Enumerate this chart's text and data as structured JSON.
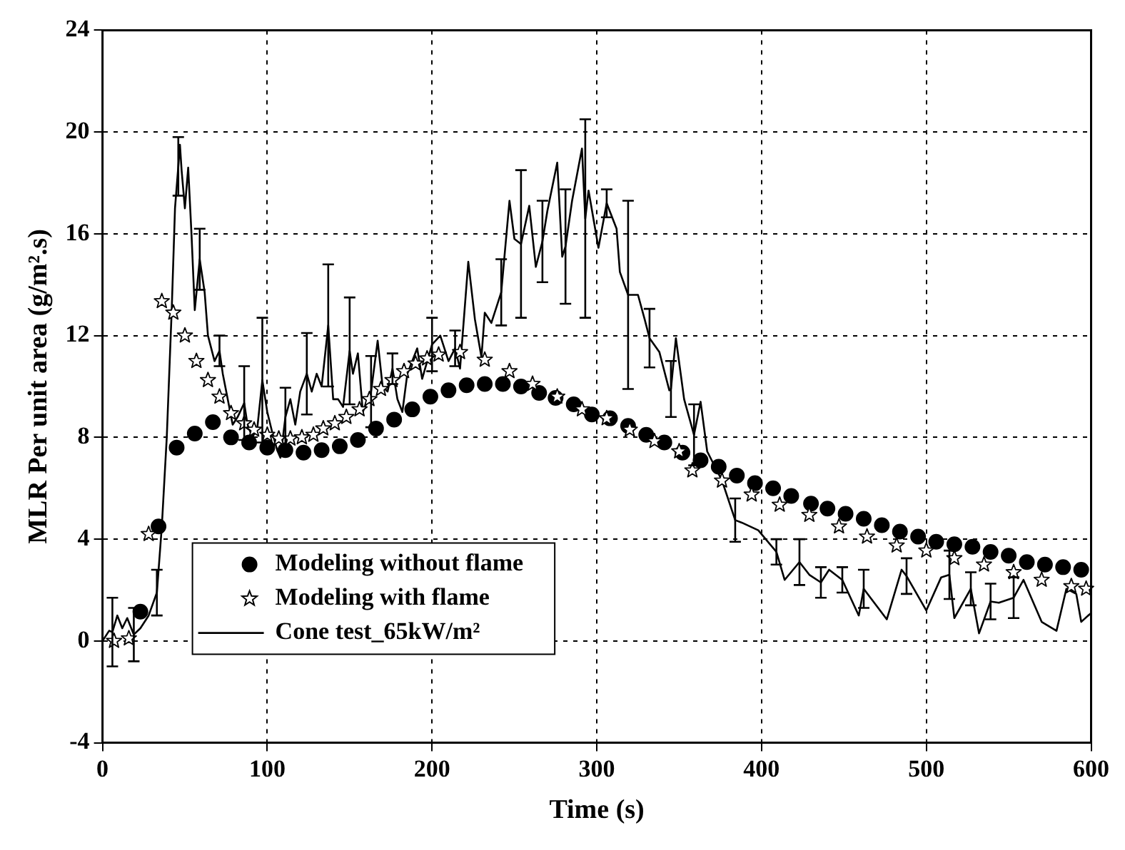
{
  "chart_data": {
    "type": "scatter",
    "xlabel": "Time (s)",
    "ylabel": "MLR Per unit area (g/m².s)",
    "xlim": [
      0,
      600
    ],
    "xticks": [
      0,
      100,
      200,
      300,
      400,
      500,
      600
    ],
    "ylim": [
      -4,
      24
    ],
    "yticks": [
      -4,
      0,
      4,
      8,
      12,
      16,
      20,
      24
    ],
    "grid": true,
    "legend": "bottom left",
    "series": [
      {
        "name": "Modeling without flame",
        "type": "scatter",
        "marker": "circle",
        "color": "#000000",
        "x": [
          23,
          34,
          45,
          56,
          67,
          78,
          89,
          100,
          111,
          122,
          133,
          144,
          155,
          166,
          177,
          188,
          199,
          210,
          221,
          232,
          243,
          254,
          265,
          275,
          286,
          297,
          308,
          319,
          330,
          341,
          352,
          363,
          374,
          385,
          396,
          407,
          418,
          430,
          440,
          451,
          462,
          473,
          484,
          495,
          506,
          517,
          528,
          539,
          550,
          561,
          572,
          583,
          594
        ],
        "values": [
          1.15,
          4.5,
          7.6,
          8.15,
          8.6,
          8.0,
          7.8,
          7.6,
          7.5,
          7.4,
          7.5,
          7.65,
          7.9,
          8.35,
          8.7,
          9.1,
          9.6,
          9.85,
          10.05,
          10.1,
          10.1,
          10.0,
          9.75,
          9.55,
          9.3,
          8.9,
          8.75,
          8.45,
          8.1,
          7.8,
          7.4,
          7.1,
          6.85,
          6.5,
          6.2,
          6.0,
          5.7,
          5.4,
          5.2,
          5.0,
          4.8,
          4.55,
          4.3,
          4.1,
          3.9,
          3.8,
          3.7,
          3.5,
          3.35,
          3.1,
          3.0,
          2.9,
          2.8
        ]
      },
      {
        "name": "Modeling with flame",
        "type": "scatter",
        "marker": "star",
        "color": "#000000",
        "x": [
          7,
          16,
          28,
          36,
          43,
          50,
          57,
          64,
          71,
          78,
          86,
          92,
          100,
          107,
          114,
          121,
          128,
          134,
          141,
          148,
          156,
          162,
          169,
          176,
          183,
          190,
          197,
          204,
          217,
          232,
          247,
          261,
          276,
          291,
          306,
          320,
          335,
          350,
          358,
          376,
          394,
          411,
          429,
          447,
          464,
          482,
          500,
          517,
          535,
          553,
          570,
          588,
          597
        ],
        "values": [
          0,
          0.1,
          4.2,
          13.35,
          12.9,
          12.0,
          11.0,
          10.25,
          9.6,
          8.95,
          8.55,
          8.3,
          8.1,
          7.95,
          7.95,
          8.0,
          8.1,
          8.35,
          8.55,
          8.8,
          9.1,
          9.5,
          9.9,
          10.25,
          10.6,
          10.9,
          11.1,
          11.25,
          11.35,
          11.05,
          10.6,
          10.1,
          9.6,
          9.1,
          8.75,
          8.3,
          7.85,
          7.45,
          6.7,
          6.3,
          5.75,
          5.35,
          4.95,
          4.5,
          4.1,
          3.75,
          3.55,
          3.25,
          3.0,
          2.7,
          2.4,
          2.15,
          2.05
        ]
      },
      {
        "name": "Cone test_65kW/m²",
        "type": "line",
        "marker": "none",
        "line_style": "solid",
        "color": "#000000",
        "x": [
          0,
          4,
          6,
          9,
          12,
          15,
          19,
          23,
          28,
          33,
          36,
          39,
          42,
          44,
          46,
          47,
          48,
          50,
          52,
          54,
          56,
          59,
          62,
          64,
          68,
          71,
          73,
          76,
          79,
          82,
          86,
          88,
          91,
          94,
          97,
          100,
          103,
          106,
          108,
          111,
          114,
          117,
          120,
          124,
          127,
          130,
          133,
          137,
          140,
          143,
          146,
          150,
          152,
          155,
          158,
          163,
          167,
          170,
          173,
          176,
          179,
          182,
          185,
          188,
          191,
          194,
          200,
          205,
          210,
          214,
          217,
          222,
          226,
          230,
          232,
          236,
          242,
          247,
          250,
          254,
          259,
          263,
          267,
          270,
          276,
          279,
          281,
          285,
          291,
          293,
          295,
          301,
          306,
          312,
          314,
          319,
          325,
          329,
          332,
          338,
          344,
          345,
          348,
          353,
          359,
          363,
          367,
          376,
          384,
          388,
          398,
          409,
          414,
          423,
          429,
          436,
          441,
          449,
          459,
          462,
          476,
          485,
          488,
          500,
          509,
          514,
          517,
          527,
          532,
          539,
          544,
          553,
          559,
          570,
          579,
          585,
          591,
          594,
          600
        ],
        "values": [
          0,
          0.4,
          0.35,
          1.0,
          0.5,
          0.9,
          0.25,
          0.5,
          1.0,
          1.9,
          4.5,
          8,
          13,
          17,
          18.65,
          19.5,
          18.5,
          17,
          18.6,
          16,
          13,
          15,
          13.7,
          12,
          11,
          11.4,
          10.5,
          9.5,
          8.5,
          8.8,
          9.35,
          8.5,
          8,
          8.4,
          10.25,
          9,
          8.2,
          7.5,
          7.2,
          8.8,
          9.5,
          8.5,
          9.8,
          10.5,
          9.8,
          10.5,
          10,
          12.4,
          9.5,
          9.5,
          9.2,
          11.4,
          10.5,
          11.3,
          9,
          9.8,
          11.8,
          10,
          9.8,
          10.7,
          9.5,
          9,
          10.5,
          11,
          11.5,
          10.3,
          11.65,
          12,
          11,
          11.5,
          10.7,
          14.9,
          12.65,
          11.15,
          12.9,
          12.5,
          13.7,
          17.3,
          15.8,
          15.6,
          17.1,
          14.7,
          15.7,
          16.9,
          18.8,
          15.1,
          15.5,
          17.3,
          19.35,
          16.6,
          17.7,
          15.45,
          17.2,
          16.2,
          14.5,
          13.6,
          13.6,
          12.65,
          11.9,
          11.35,
          9.85,
          9.9,
          11.9,
          9.5,
          8.1,
          9.4,
          7.45,
          6.3,
          4.75,
          4.65,
          4.35,
          3.5,
          2.4,
          3.1,
          2.6,
          2.3,
          2.8,
          2.4,
          1.0,
          2.05,
          0.85,
          2.8,
          2.55,
          1.2,
          2.5,
          2.6,
          0.9,
          2.05,
          0.3,
          1.55,
          1.5,
          1.7,
          2.4,
          0.75,
          0.4,
          2.05,
          1.85,
          0.75,
          1.1
        ],
        "errors": [
          null,
          null,
          1.35,
          null,
          null,
          null,
          1.05,
          null,
          null,
          0.9,
          null,
          null,
          null,
          null,
          1.15,
          null,
          null,
          null,
          null,
          null,
          null,
          1.2,
          null,
          null,
          null,
          0.6,
          null,
          null,
          null,
          null,
          1.45,
          null,
          null,
          null,
          2.45,
          null,
          null,
          null,
          null,
          1.15,
          null,
          null,
          null,
          1.6,
          null,
          null,
          null,
          2.4,
          null,
          null,
          null,
          2.1,
          null,
          null,
          null,
          1.4,
          null,
          null,
          null,
          0.6,
          null,
          null,
          null,
          null,
          null,
          null,
          1.05,
          null,
          null,
          0.7,
          null,
          null,
          null,
          null,
          null,
          null,
          1.3,
          null,
          null,
          2.9,
          null,
          null,
          1.6,
          null,
          null,
          null,
          2.25,
          null,
          null,
          3.9,
          null,
          null,
          0.55,
          null,
          null,
          3.7,
          null,
          null,
          1.15,
          null,
          null,
          1.1,
          null,
          null,
          1.2,
          null,
          null,
          null,
          0.85,
          null,
          null,
          0.5,
          null,
          0.9,
          null,
          0.6,
          null,
          0.5,
          null,
          0.75,
          null,
          null,
          0.7,
          null,
          null,
          0.95,
          null,
          0.65,
          null,
          0.7,
          null,
          0.8,
          null,
          null,
          null,
          null,
          null,
          null,
          null
        ]
      }
    ]
  }
}
